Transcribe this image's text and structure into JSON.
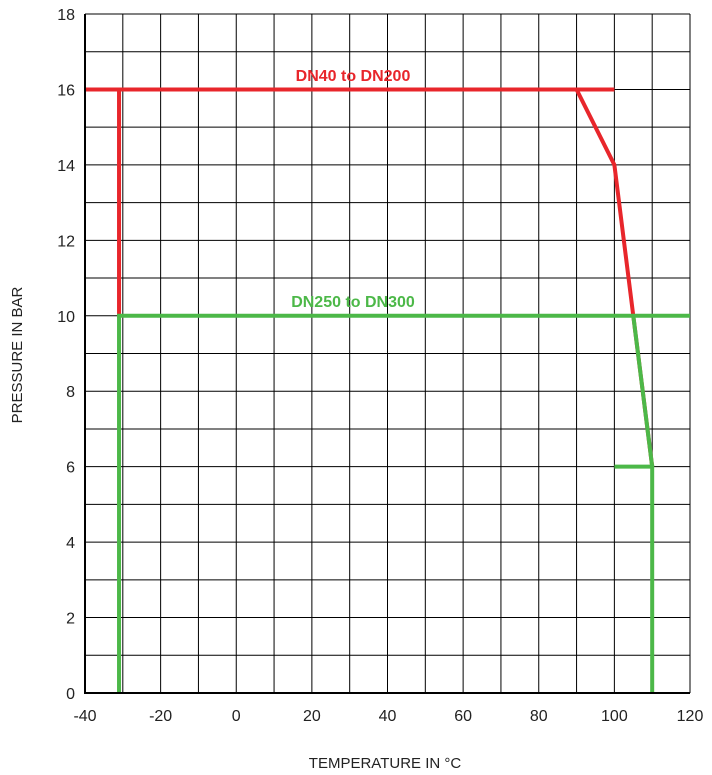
{
  "chart_data": {
    "type": "line",
    "xlabel": "TEMPERATURE  IN °C",
    "ylabel": "PRESSURE  IN BAR",
    "xlim": [
      -40,
      120
    ],
    "ylim": [
      0,
      18
    ],
    "x_ticks": [
      -40,
      -20,
      0,
      20,
      40,
      60,
      80,
      100,
      120
    ],
    "y_ticks": [
      0,
      2,
      4,
      6,
      8,
      10,
      12,
      14,
      16,
      18
    ],
    "x_minor_step": 10,
    "y_minor_step": 1,
    "grid": true,
    "series": [
      {
        "name": "DN40 to DN200",
        "color": "#e8262b",
        "points": [
          [
            -40,
            16
          ],
          [
            90,
            16
          ],
          [
            100,
            14
          ],
          [
            110,
            6
          ]
        ],
        "extra_segments": [
          [
            [
              -31,
              16
            ],
            [
              -31,
              10
            ]
          ],
          [
            [
              90,
              16
            ],
            [
              100,
              16
            ]
          ]
        ]
      },
      {
        "name": "DN250 to DN300",
        "color": "#4cb848",
        "points": [
          [
            -31,
            0
          ],
          [
            -31,
            10
          ],
          [
            120,
            10
          ]
        ],
        "extra_segments": [
          [
            [
              105,
              10
            ],
            [
              110,
              6
            ]
          ],
          [
            [
              100,
              6
            ],
            [
              110,
              6
            ],
            [
              110,
              0
            ]
          ]
        ]
      }
    ]
  }
}
